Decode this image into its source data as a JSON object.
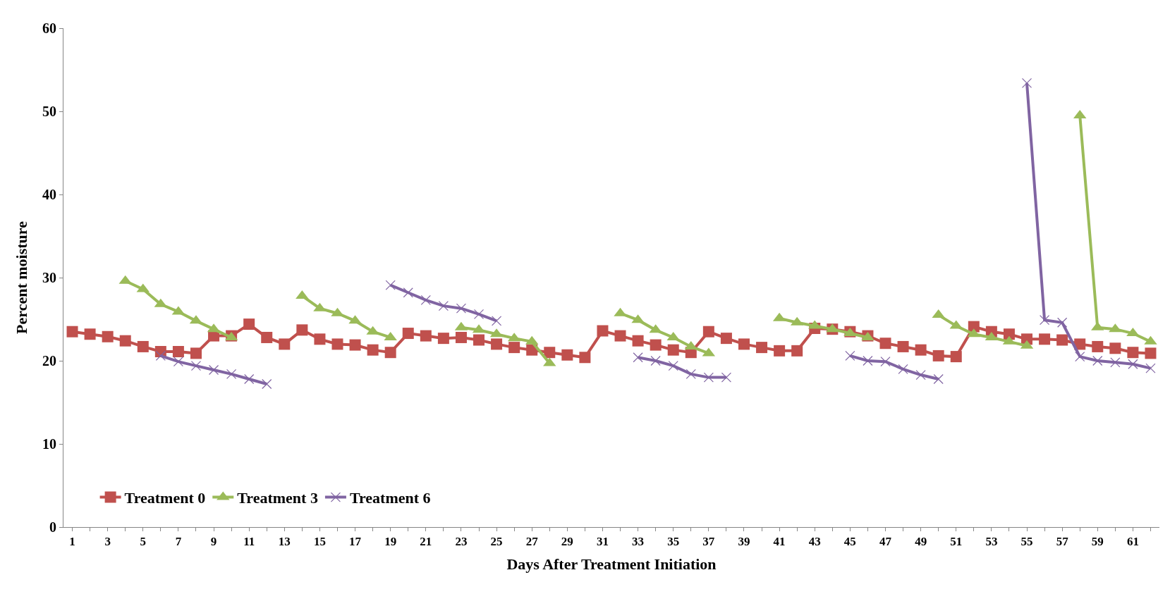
{
  "chart_data": {
    "type": "line",
    "xlabel": "Days After Treatment Initiation",
    "ylabel": "Percent moisture",
    "x": [
      1,
      2,
      3,
      4,
      5,
      6,
      7,
      8,
      9,
      10,
      11,
      12,
      13,
      14,
      15,
      16,
      17,
      18,
      19,
      20,
      21,
      22,
      23,
      24,
      25,
      26,
      27,
      28,
      29,
      30,
      31,
      32,
      33,
      34,
      35,
      36,
      37,
      38,
      39,
      40,
      41,
      42,
      43,
      44,
      45,
      46,
      47,
      48,
      49,
      50,
      51,
      52,
      53,
      54,
      55,
      56,
      57,
      58,
      59,
      60,
      61,
      62
    ],
    "xlim": [
      0.5,
      62.5
    ],
    "xticks": [
      1,
      {
        "value": 2,
        "label": null
      },
      3,
      {
        "value": 4,
        "label": null
      },
      5,
      {
        "value": 6,
        "label": null
      },
      7,
      {
        "value": 8,
        "label": null
      },
      9,
      {
        "value": 10,
        "label": null
      },
      11,
      {
        "value": 12,
        "label": null
      },
      13,
      {
        "value": 14,
        "label": null
      },
      15,
      {
        "value": 16,
        "label": null
      },
      17,
      {
        "value": 18,
        "label": null
      },
      19,
      {
        "value": 20,
        "label": null
      },
      21,
      {
        "value": 22,
        "label": null
      },
      23,
      {
        "value": 24,
        "label": null
      },
      25,
      {
        "value": 26,
        "label": null
      },
      27,
      {
        "value": 28,
        "label": null
      },
      29,
      {
        "value": 30,
        "label": null
      },
      31,
      {
        "value": 32,
        "label": null
      },
      33,
      {
        "value": 34,
        "label": null
      },
      35,
      {
        "value": 36,
        "label": null
      },
      37,
      {
        "value": 38,
        "label": null
      },
      39,
      {
        "value": 40,
        "label": null
      },
      41,
      {
        "value": 42,
        "label": null
      },
      43,
      {
        "value": 44,
        "label": null
      },
      45,
      {
        "value": 46,
        "label": null
      },
      47,
      {
        "value": 48,
        "label": null
      },
      49,
      {
        "value": 50,
        "label": null
      },
      51,
      {
        "value": 52,
        "label": null
      },
      53,
      {
        "value": 54,
        "label": null
      },
      55,
      {
        "value": 56,
        "label": null
      },
      57,
      {
        "value": 58,
        "label": null
      },
      59,
      {
        "value": 60,
        "label": null
      },
      61,
      {
        "value": 62,
        "label": null
      }
    ],
    "series": [
      {
        "name": "Treatment 0",
        "color": "#c0504d",
        "marker": "square",
        "values": [
          23.5,
          23.2,
          22.9,
          22.4,
          21.7,
          21.1,
          21.1,
          20.9,
          23.0,
          23.0,
          24.4,
          22.8,
          22.0,
          23.7,
          22.6,
          22.0,
          21.9,
          21.3,
          21.0,
          23.3,
          23.0,
          22.7,
          22.8,
          22.5,
          22.0,
          21.6,
          21.3,
          21.0,
          20.7,
          20.4,
          23.6,
          23.0,
          22.4,
          21.9,
          21.3,
          21.0,
          23.5,
          22.7,
          22.0,
          21.6,
          21.2,
          21.2,
          23.9,
          23.8,
          23.5,
          23.0,
          22.1,
          21.7,
          21.3,
          20.6,
          20.5,
          24.1,
          23.5,
          23.2,
          22.6,
          22.6,
          22.5,
          22.0,
          21.7,
          21.5,
          21.0,
          20.9
        ]
      },
      {
        "name": "Treatment 3",
        "color": "#9bbb59",
        "marker": "triangle",
        "values": [
          null,
          null,
          null,
          29.6,
          28.6,
          26.8,
          25.9,
          24.8,
          23.8,
          22.8,
          null,
          null,
          null,
          27.8,
          26.3,
          25.7,
          24.8,
          23.5,
          22.8,
          null,
          null,
          null,
          24.0,
          23.7,
          23.2,
          22.7,
          22.3,
          19.7,
          null,
          null,
          null,
          25.7,
          24.9,
          23.7,
          22.8,
          21.7,
          20.9,
          null,
          null,
          null,
          25.1,
          24.6,
          24.2,
          23.8,
          23.3,
          22.8,
          null,
          null,
          null,
          25.5,
          24.2,
          23.2,
          22.8,
          22.3,
          21.8,
          null,
          null,
          49.5,
          24.0,
          23.8,
          23.3,
          22.3
        ]
      },
      {
        "name": "Treatment 6",
        "color": "#8064a2",
        "marker": "cross",
        "values": [
          null,
          null,
          null,
          null,
          null,
          20.6,
          19.9,
          19.4,
          18.9,
          18.4,
          17.8,
          17.2,
          null,
          null,
          null,
          null,
          null,
          null,
          29.1,
          28.2,
          27.3,
          26.6,
          26.3,
          25.6,
          24.8,
          null,
          null,
          null,
          null,
          null,
          null,
          null,
          20.4,
          20.0,
          19.4,
          18.4,
          18.0,
          18.0,
          null,
          null,
          null,
          null,
          null,
          null,
          20.6,
          20.0,
          19.9,
          19.0,
          18.3,
          17.8,
          null,
          null,
          null,
          null,
          53.4,
          24.9,
          24.6,
          20.5,
          20.0,
          19.8,
          19.6,
          19.1
        ]
      }
    ],
    "ylim": [
      0,
      60
    ],
    "yticks": [
      0,
      10,
      20,
      30,
      40,
      50,
      60
    ],
    "legend": "bottom left",
    "line_style": "solid"
  }
}
